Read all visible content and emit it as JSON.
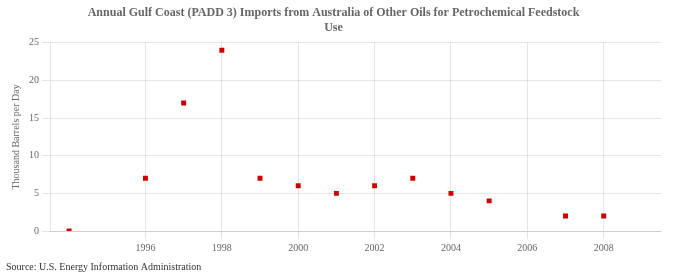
{
  "chart_data": {
    "type": "scatter",
    "title": "Annual Gulf Coast (PADD 3) Imports from Australia of Other Oils for Petrochemical Feedstock\nUse",
    "y_label": "Thousand Barrels per Day",
    "annotations": [
      "Source: U.S. Energy Information Administration"
    ],
    "x": [
      1994,
      1996,
      1997,
      1998,
      1999,
      2000,
      2001,
      2002,
      2003,
      2004,
      2005,
      2007,
      2008
    ],
    "values": [
      0,
      7,
      17,
      24,
      7,
      6,
      5,
      6,
      7,
      5,
      4,
      2,
      2
    ],
    "color": "#cc0000",
    "marker": "square",
    "xlim": [
      1993.5,
      2009.5
    ],
    "xticks": [
      1996,
      1998,
      2000,
      2002,
      2004,
      2006,
      2008
    ],
    "ylim": [
      0,
      25
    ],
    "yticks": [
      0,
      5,
      10,
      15,
      20,
      25
    ],
    "grid": true
  }
}
